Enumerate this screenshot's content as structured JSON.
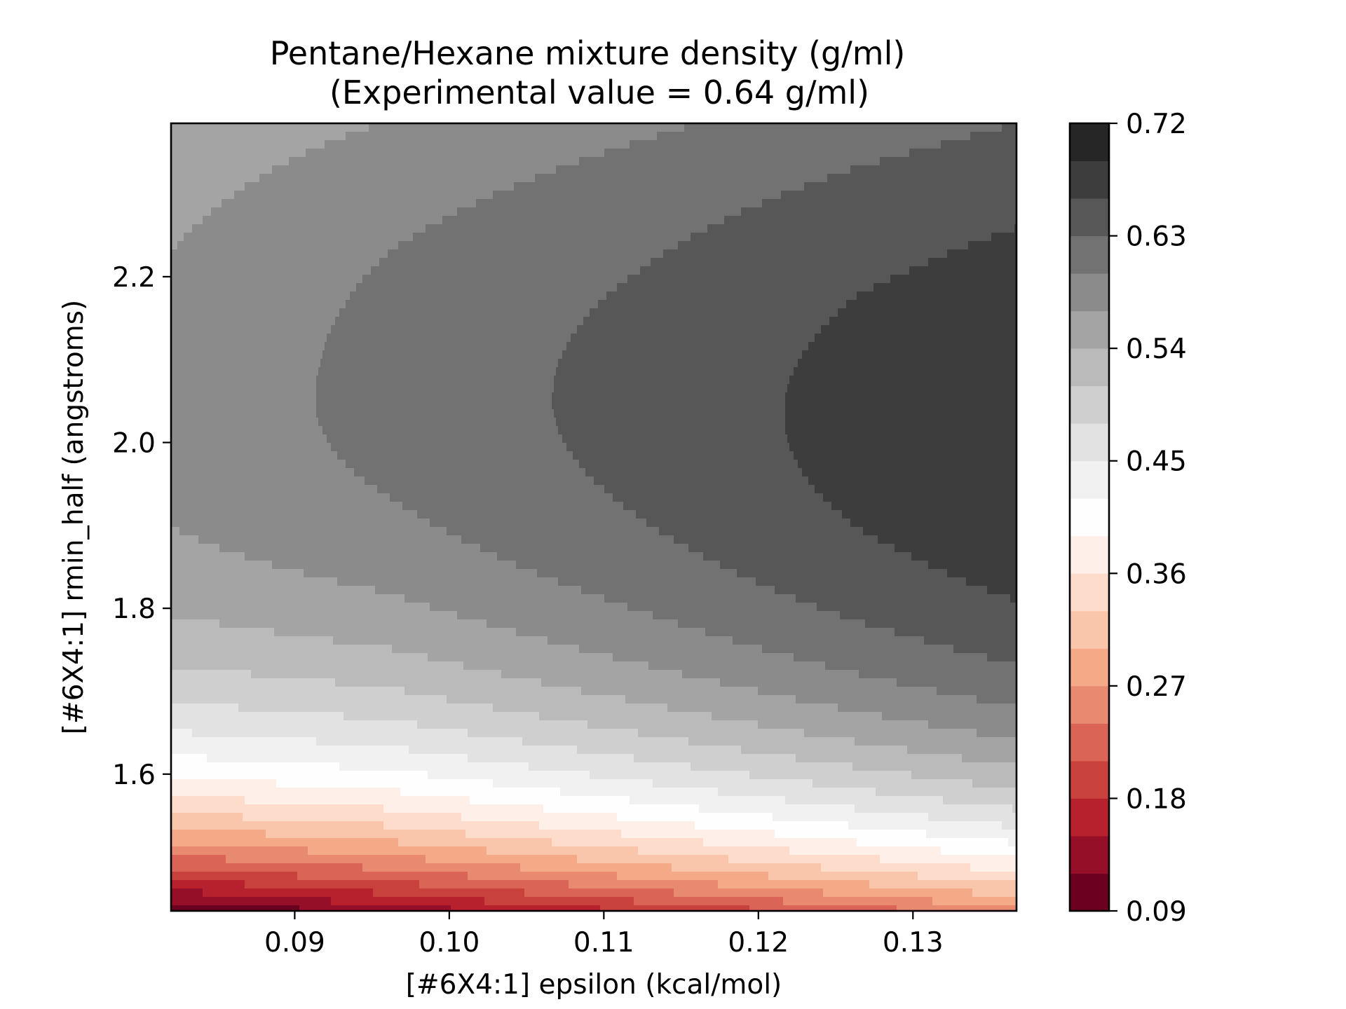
{
  "chart_data": {
    "type": "heatmap",
    "subtype": "filled-contour",
    "title": "Pentane/Hexane mixture density (g/ml)",
    "subtitle": "(Experimental value = 0.64 g/ml)",
    "xlabel": "[#6X4:1] epsilon (kcal/mol)",
    "ylabel": "[#6X4:1] rmin_half (angstroms)",
    "xlim": [
      0.082,
      0.1367
    ],
    "ylim": [
      1.435,
      2.385
    ],
    "xticks": [
      0.09,
      0.1,
      0.11,
      0.12,
      0.13
    ],
    "xtick_labels": [
      "0.09",
      "0.10",
      "0.11",
      "0.12",
      "0.13"
    ],
    "yticks": [
      1.6,
      1.8,
      2.0,
      2.2
    ],
    "ytick_labels": [
      "1.6",
      "1.8",
      "2.0",
      "2.2"
    ],
    "colorbar": {
      "min": 0.09,
      "max": 0.72,
      "ticks": [
        0.09,
        0.18,
        0.27,
        0.36,
        0.45,
        0.54,
        0.63,
        0.72
      ],
      "tick_labels": [
        "0.09",
        "0.18",
        "0.27",
        "0.36",
        "0.45",
        "0.54",
        "0.63",
        "0.72"
      ],
      "level_step": 0.03,
      "colormap": "RdGy",
      "level_colors": [
        "#6b0020",
        "#960f28",
        "#b7202d",
        "#c8413d",
        "#da6556",
        "#e88a6f",
        "#f4a987",
        "#f9c5ab",
        "#fddccc",
        "#fef0e9",
        "#fefefe",
        "#f1f1f1",
        "#e2e2e2",
        "#cfcfcf",
        "#bababa",
        "#a4a4a4",
        "#8b8b8b",
        "#727272",
        "#575757",
        "#3d3d3d",
        "#262626"
      ]
    },
    "field_points": [
      {
        "epsilon": 0.082,
        "rmin_half": 2.02,
        "density": 0.58
      },
      {
        "epsilon": 0.096,
        "rmin_half": 2.07,
        "density": 0.61
      },
      {
        "epsilon": 0.112,
        "rmin_half": 2.045,
        "density": 0.64
      },
      {
        "epsilon": 0.1265,
        "rmin_half": 2.025,
        "density": 0.67
      },
      {
        "epsilon": 0.1367,
        "rmin_half": 2.0,
        "density": 0.685
      },
      {
        "epsilon": 0.082,
        "rmin_half": 1.435,
        "density": 0.09
      },
      {
        "epsilon": 0.1367,
        "rmin_half": 1.435,
        "density": 0.26
      },
      {
        "epsilon": 0.082,
        "rmin_half": 2.385,
        "density": 0.55
      },
      {
        "epsilon": 0.1367,
        "rmin_half": 2.385,
        "density": 0.63
      }
    ]
  }
}
